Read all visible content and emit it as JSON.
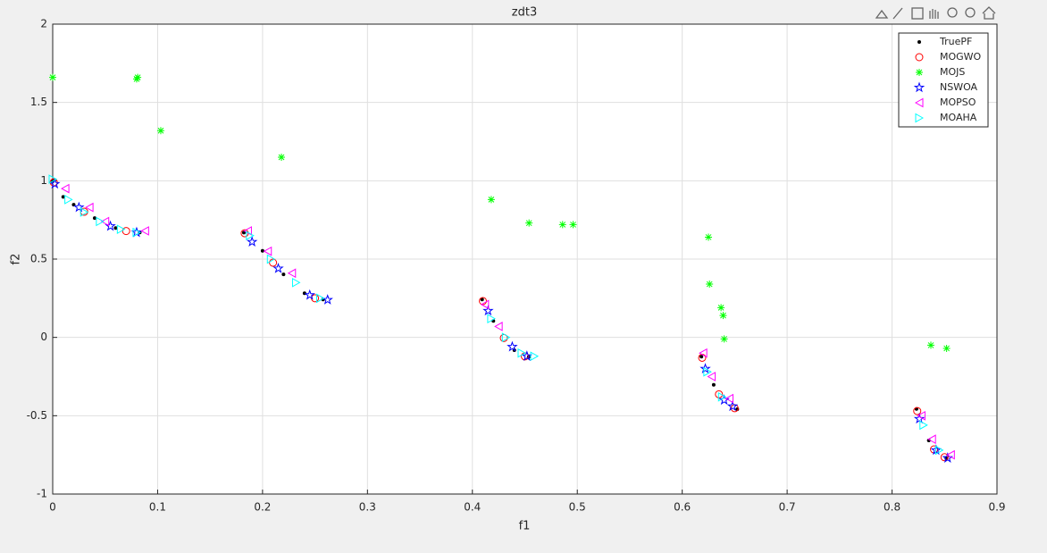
{
  "chart_data": {
    "type": "scatter",
    "title": "zdt3",
    "x_label": "f1",
    "y_label": "f2",
    "xlim": [
      0,
      0.9
    ],
    "xticks": [
      0,
      0.1,
      0.2,
      0.3,
      0.4,
      0.5,
      0.6,
      0.7,
      0.8,
      0.9
    ],
    "ylim": [
      -1,
      2
    ],
    "yticks": [
      -1,
      -0.5,
      0,
      0.5,
      1,
      1.5,
      2
    ],
    "grid": true,
    "legend": "top-right",
    "series": [
      {
        "name": "TruePF",
        "color": "#000000",
        "marker": "dot",
        "x": [
          0,
          0.01,
          0.02,
          0.04,
          0.06,
          0.083,
          0.1822,
          0.2,
          0.22,
          0.24,
          0.2577,
          0.4093,
          0.42,
          0.44,
          0.4538,
          0.6183,
          0.63,
          0.6525,
          0.8233,
          0.835,
          0.8518
        ],
        "values": [
          1,
          0.897,
          0.847,
          0.762,
          0.698,
          0.67,
          0.669,
          0.553,
          0.402,
          0.282,
          0.242,
          0.242,
          0.105,
          -0.082,
          -0.124,
          -0.123,
          -0.303,
          -0.458,
          -0.457,
          -0.658,
          -0.773
        ]
      },
      {
        "name": "MOGWO",
        "color": "#ff0000",
        "marker": "circle",
        "x": [
          0.001,
          0.03,
          0.07,
          0.183,
          0.21,
          0.25,
          0.41,
          0.43,
          0.45,
          0.619,
          0.635,
          0.65,
          0.824,
          0.84,
          0.85
        ],
        "values": [
          0.99,
          0.802,
          0.679,
          0.665,
          0.477,
          0.25,
          0.232,
          -0.004,
          -0.121,
          -0.13,
          -0.363,
          -0.452,
          -0.47,
          -0.715,
          -0.765
        ]
      },
      {
        "name": "MOJS",
        "color": "#00ff00",
        "marker": "asterisk",
        "x": [
          0,
          0.08,
          0.081,
          0.103,
          0.218,
          0.418,
          0.454,
          0.486,
          0.496,
          0.625,
          0.626,
          0.637,
          0.639,
          0.64,
          0.837,
          0.852
        ],
        "values": [
          1.66,
          1.65,
          1.66,
          1.32,
          1.15,
          0.88,
          0.73,
          0.72,
          0.72,
          0.64,
          0.34,
          0.19,
          0.14,
          -0.01,
          -0.05,
          -0.07
        ]
      },
      {
        "name": "NSWOA",
        "color": "#0000ff",
        "marker": "pentagram",
        "x": [
          0.002,
          0.025,
          0.055,
          0.08,
          0.19,
          0.215,
          0.245,
          0.262,
          0.415,
          0.438,
          0.452,
          0.622,
          0.64,
          0.648,
          0.826,
          0.842,
          0.853
        ],
        "values": [
          0.98,
          0.83,
          0.71,
          0.67,
          0.61,
          0.44,
          0.27,
          0.24,
          0.17,
          -0.06,
          -0.12,
          -0.2,
          -0.4,
          -0.44,
          -0.52,
          -0.72,
          -0.77
        ]
      },
      {
        "name": "MOPSO",
        "color": "#ff00ff",
        "marker": "triangle-left",
        "x": [
          0.012,
          0.035,
          0.05,
          0.088,
          0.186,
          0.205,
          0.228,
          0.412,
          0.425,
          0.62,
          0.628,
          0.645,
          0.828,
          0.838,
          0.856
        ],
        "values": [
          0.95,
          0.83,
          0.74,
          0.68,
          0.68,
          0.55,
          0.41,
          0.21,
          0.07,
          -0.1,
          -0.25,
          -0.39,
          -0.5,
          -0.65,
          -0.75
        ]
      },
      {
        "name": "MOAHA",
        "color": "#00ffff",
        "marker": "triangle-right",
        "x": [
          0,
          0.015,
          0.03,
          0.045,
          0.065,
          0.08,
          0.188,
          0.208,
          0.232,
          0.255,
          0.418,
          0.432,
          0.447,
          0.459,
          0.624,
          0.638,
          0.83,
          0.845
        ],
        "values": [
          1.01,
          0.88,
          0.8,
          0.74,
          0.69,
          0.67,
          0.65,
          0.5,
          0.35,
          0.25,
          0.12,
          0.0,
          -0.1,
          -0.12,
          -0.22,
          -0.38,
          -0.56,
          -0.72
        ]
      }
    ]
  }
}
